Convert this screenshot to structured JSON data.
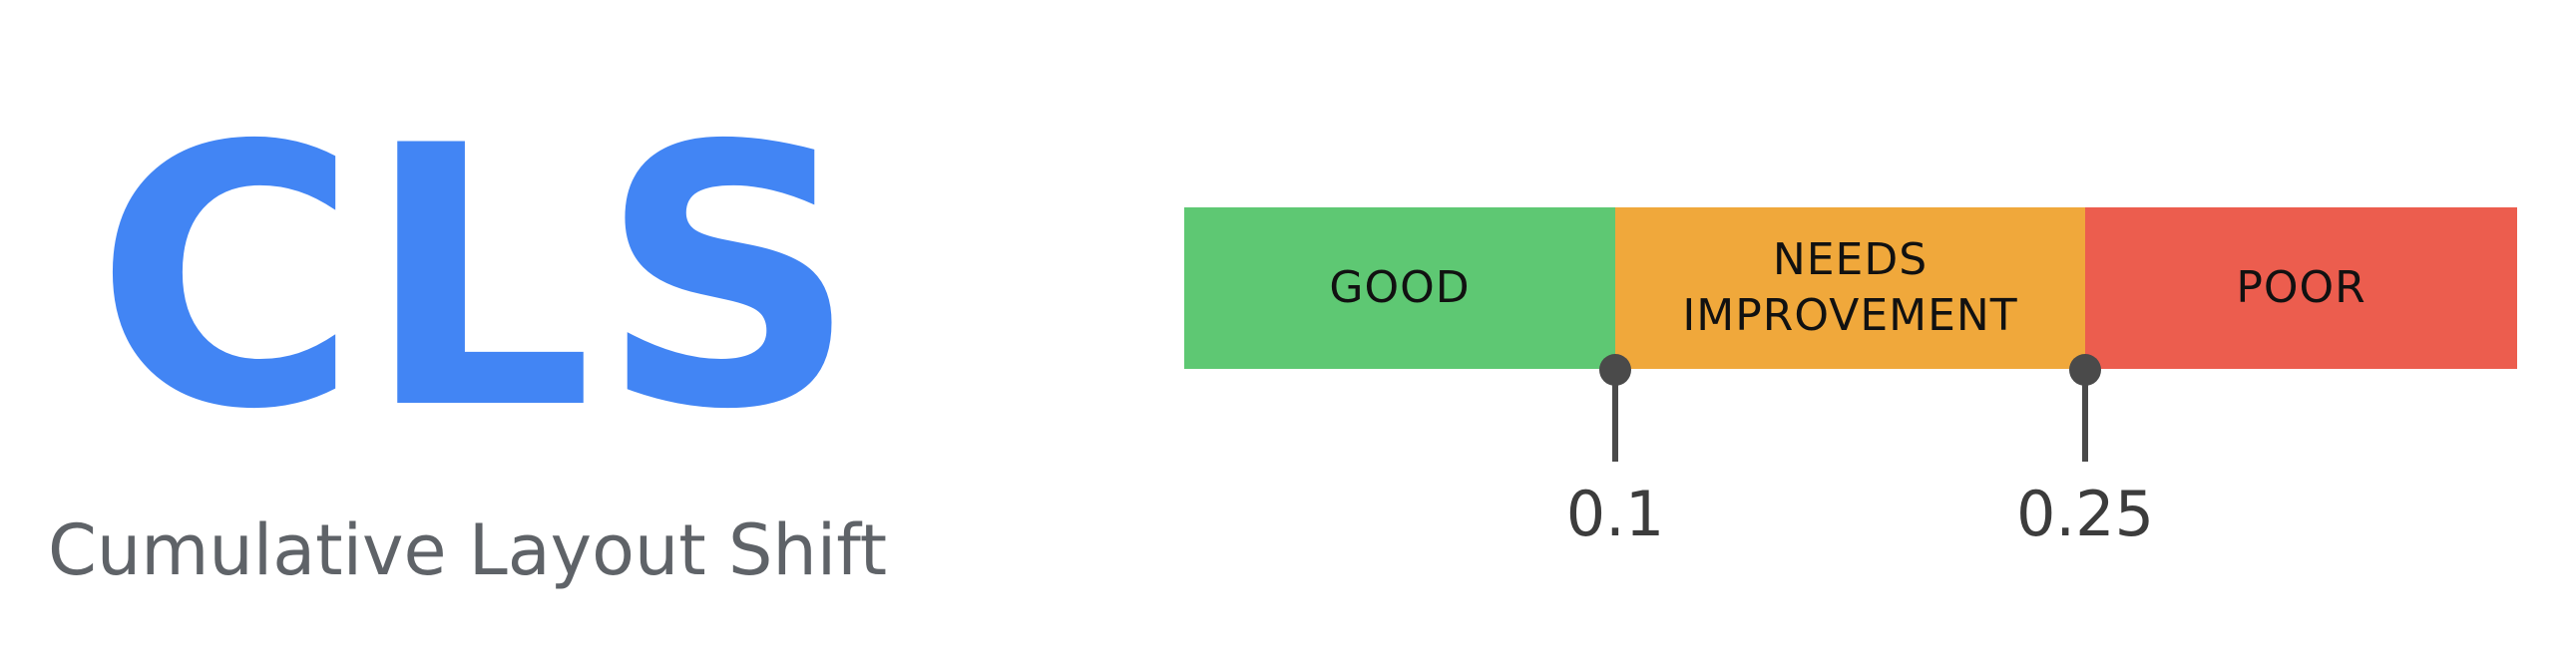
{
  "metric": {
    "abbreviation": "CLS",
    "name": "Cumulative Layout Shift",
    "color": "#4285f4"
  },
  "scale": {
    "bands": [
      {
        "label": "GOOD",
        "color": "#5ec873"
      },
      {
        "label": "NEEDS IMPROVEMENT",
        "line1": "NEEDS",
        "line2": "IMPROVEMENT",
        "color": "#f0a83b"
      },
      {
        "label": "POOR",
        "color": "#ec5d4e"
      }
    ],
    "thresholds": [
      "0.1",
      "0.25"
    ]
  }
}
